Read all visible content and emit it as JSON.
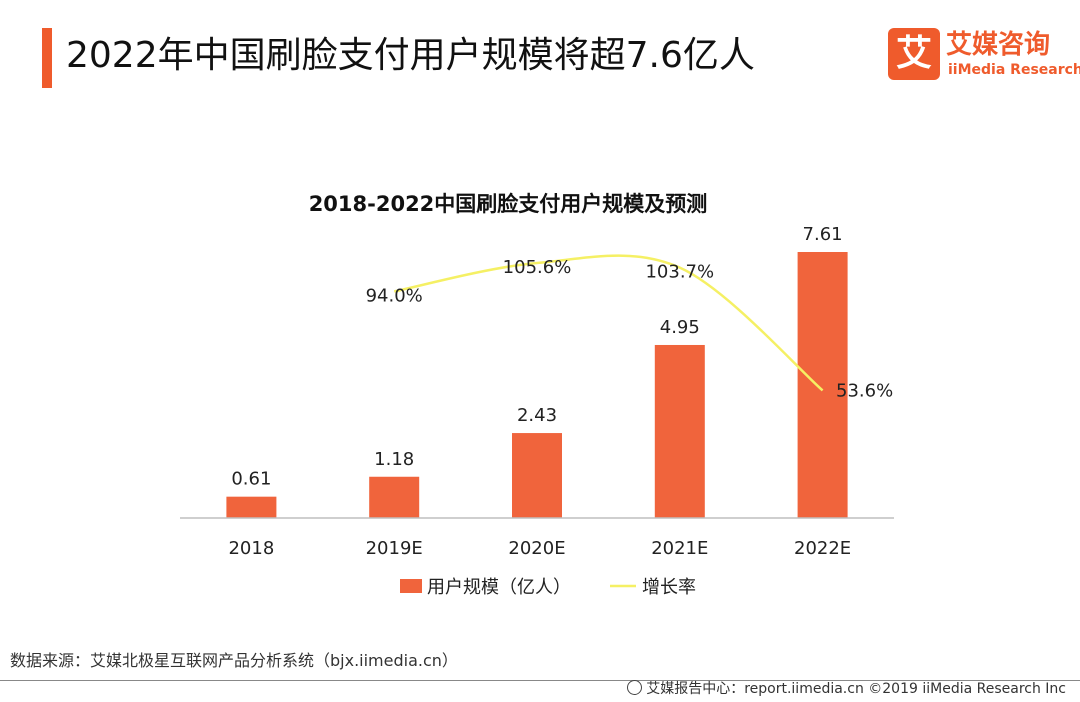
{
  "header": {
    "title": "2022年中国刷脸支付用户规模将超7.6亿人"
  },
  "logo": {
    "mark": "艾",
    "name_cn": "艾媒咨询",
    "name_en": "iiMedia Research"
  },
  "chart_data": {
    "type": "bar",
    "title": "2018-2022中国刷脸支付用户规模及预测",
    "categories": [
      "2018",
      "2019E",
      "2020E",
      "2021E",
      "2022E"
    ],
    "series": [
      {
        "name": "用户规模（亿人）",
        "type": "bar",
        "values": [
          0.61,
          1.18,
          2.43,
          4.95,
          7.61
        ],
        "labels": [
          "0.61",
          "1.18",
          "2.43",
          "4.95",
          "7.61"
        ],
        "color": "#f0643c"
      },
      {
        "name": "增长率",
        "type": "line",
        "values": [
          null,
          94.0,
          105.6,
          103.7,
          53.6
        ],
        "labels": [
          "",
          "94.0%",
          "105.6%",
          "103.7%",
          "53.6%"
        ],
        "color": "#f5f064"
      }
    ],
    "ylim": [
      0,
      8
    ],
    "grid": false,
    "legend_position": "bottom"
  },
  "footer": {
    "source": "数据来源：艾媒北极星互联网产品分析系统（bjx.iimedia.cn）",
    "copyright": "艾媒报告中心：report.iimedia.cn  ©2019  iiMedia Research  Inc"
  }
}
